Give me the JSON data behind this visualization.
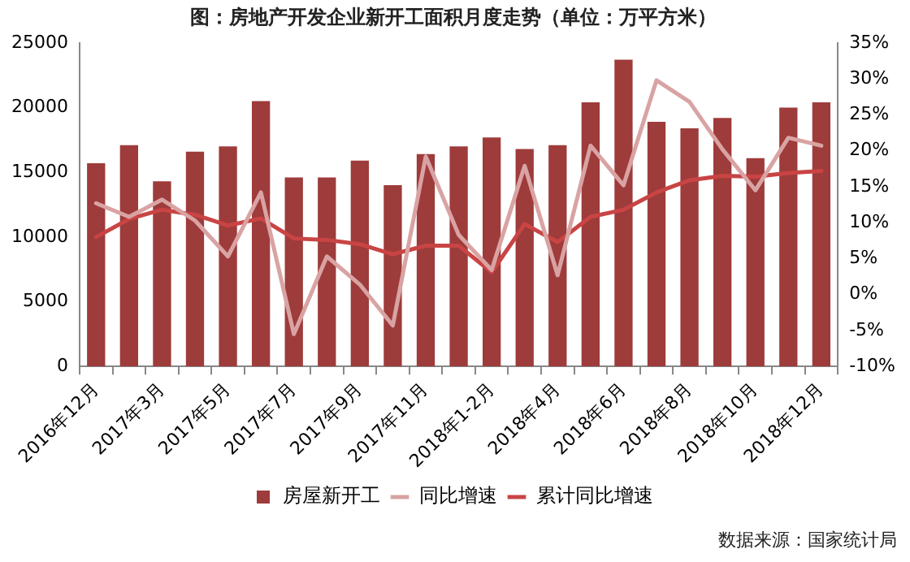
{
  "chart_data": {
    "type": "bar",
    "title": "图：房地产开发企业新开工面积月度走势（单位：万平方米）",
    "categories": [
      "2016年12月",
      null,
      "2017年3月",
      null,
      "2017年5月",
      null,
      "2017年7月",
      null,
      "2017年9月",
      null,
      "2017年11月",
      null,
      "2018年1-2月",
      null,
      "2018年4月",
      null,
      "2018年6月",
      null,
      "2018年8月",
      null,
      "2018年10月",
      null,
      "2018年12月"
    ],
    "series": [
      {
        "name": "房屋新开工",
        "color": "#9e3b3b",
        "values": [
          15700,
          17100,
          14300,
          16600,
          17000,
          20500,
          14600,
          14600,
          15900,
          14000,
          16400,
          17000,
          17700,
          16800,
          17100,
          20400,
          23700,
          18900,
          18400,
          19200,
          16100,
          20000,
          20400
        ]
      },
      {
        "name": "同比增速",
        "type": "line",
        "axis": "y2",
        "color": "#d9a3a3",
        "values": [
          12.7,
          10.8,
          13.2,
          10.3,
          5.3,
          14.2,
          -5.5,
          5.3,
          1.4,
          -4.3,
          19.2,
          8.3,
          3.4,
          17.9,
          2.7,
          20.7,
          15.2,
          29.8,
          26.8,
          20.2,
          14.5,
          21.8,
          20.7
        ]
      },
      {
        "name": "累计同比增速",
        "type": "line",
        "axis": "y2",
        "color": "#c94444",
        "values": [
          8.0,
          10.5,
          11.8,
          11.1,
          9.6,
          10.6,
          7.8,
          7.6,
          7.0,
          5.6,
          6.8,
          6.8,
          3.1,
          9.8,
          7.3,
          10.8,
          11.8,
          14.2,
          15.9,
          16.5,
          16.4,
          16.9,
          17.2
        ]
      }
    ],
    "ylim": [
      0,
      25000
    ],
    "yticks": [
      0,
      5000,
      10000,
      15000,
      20000,
      25000
    ],
    "y2lim": [
      -10,
      35
    ],
    "y2ticks": [
      {
        "value": -10,
        "label": "-10%"
      },
      {
        "value": -5,
        "label": "-5%"
      },
      {
        "value": 0,
        "label": "0%"
      },
      {
        "value": 5,
        "label": "5%"
      },
      {
        "value": 10,
        "label": "10%"
      },
      {
        "value": 15,
        "label": "15%"
      },
      {
        "value": 20,
        "label": "20%"
      },
      {
        "value": 25,
        "label": "25%"
      },
      {
        "value": 30,
        "label": "30%"
      },
      {
        "value": 35,
        "label": "35%"
      }
    ],
    "grid": false,
    "legend": "bottom",
    "marker": "none",
    "line_style": "solid",
    "annotations": [
      "数据来源：国家统计局"
    ]
  }
}
